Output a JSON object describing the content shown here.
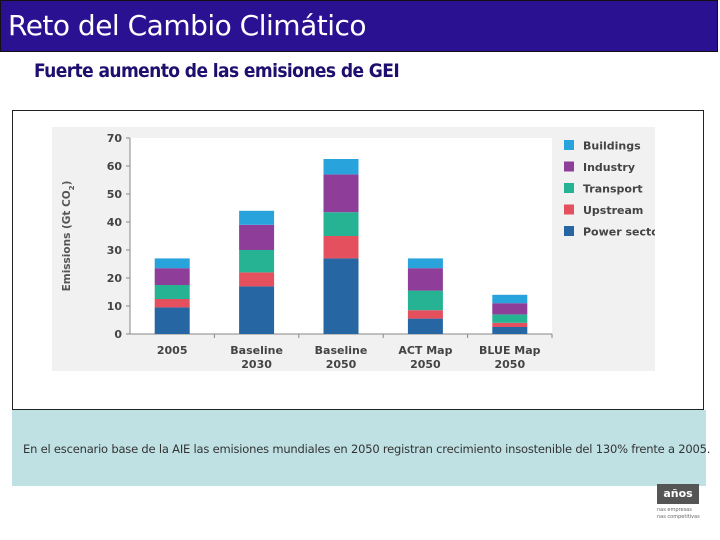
{
  "header": {
    "title": "Reto del Cambio Climático",
    "subtitle": "Fuerte aumento de las emisiones de GEI"
  },
  "caption": "En el escenario base de la AIE las emisiones mundiales en 2050 registran crecimiento insostenible del 130% frente a 2005.",
  "logo": {
    "badge": "años",
    "line1": "nas empresas",
    "line2": "nas competitivas"
  },
  "colors": {
    "title_bar": "#2a1191",
    "Buildings": "#29a3dc",
    "Industry": "#8e3d98",
    "Transport": "#26b394",
    "Upstream": "#e5505f",
    "Power sector": "#2666a2"
  },
  "chart_data": {
    "type": "bar",
    "stacked": true,
    "ylabel": "Emissions (Gt CO2)",
    "ylabel_main": "Emissions (Gt CO",
    "ylabel_sub": "2",
    "ylabel_end": ")",
    "ylim": [
      0,
      70
    ],
    "yticks": [
      "0",
      "10",
      "20",
      "30",
      "40",
      "50",
      "60",
      "70"
    ],
    "categories": [
      {
        "line1": "2005",
        "line2": ""
      },
      {
        "line1": "Baseline",
        "line2": "2030"
      },
      {
        "line1": "Baseline",
        "line2": "2050"
      },
      {
        "line1": "ACT Map",
        "line2": "2050"
      },
      {
        "line1": "BLUE Map",
        "line2": "2050"
      }
    ],
    "legend_position": "right",
    "series": [
      {
        "name": "Power sector",
        "values": [
          9.5,
          17,
          27,
          5.5,
          2.5
        ]
      },
      {
        "name": "Upstream",
        "values": [
          3,
          5,
          8,
          3,
          1.5
        ]
      },
      {
        "name": "Transport",
        "values": [
          5,
          8,
          8.5,
          7,
          3
        ]
      },
      {
        "name": "Industry",
        "values": [
          6,
          9,
          13.5,
          8,
          4
        ]
      },
      {
        "name": "Buildings",
        "values": [
          3.5,
          5,
          5.5,
          3.5,
          3
        ]
      }
    ],
    "legend_order": [
      "Buildings",
      "Industry",
      "Transport",
      "Upstream",
      "Power sector"
    ]
  }
}
